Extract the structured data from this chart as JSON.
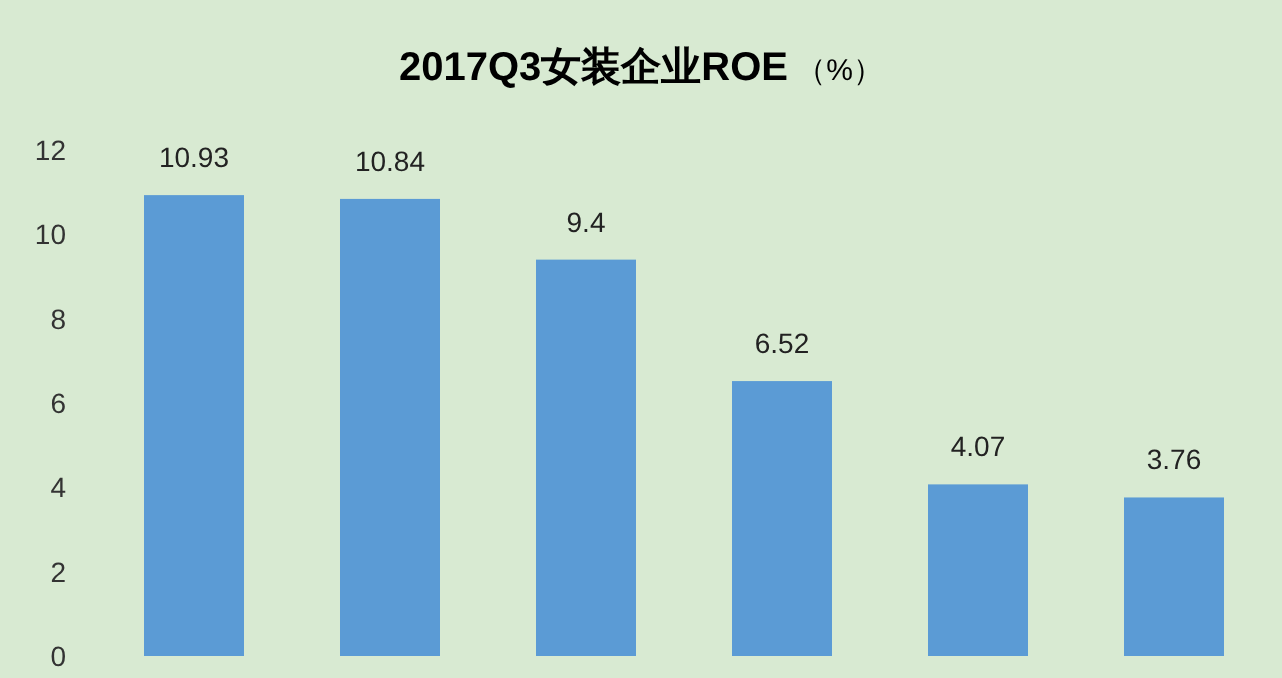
{
  "chart_data": {
    "type": "bar",
    "title": "**2017Q3女装企业ROE** （%）",
    "categories": [
      null,
      null,
      null,
      null,
      null,
      null
    ],
    "values": [
      10.93,
      10.84,
      9.4,
      6.52,
      4.07,
      3.76
    ],
    "color": "#5b9bd5",
    "ylim": [
      0,
      12
    ],
    "yticks": [
      0,
      2,
      4,
      6,
      8,
      10,
      12
    ],
    "data_labels": true
  }
}
